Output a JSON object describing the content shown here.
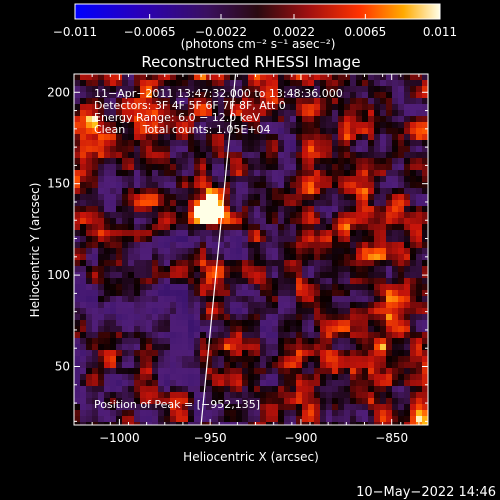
{
  "chart_data": {
    "type": "heatmap",
    "title": "Reconstructed RHESSI Image",
    "xlabel": "Heliocentric X (arcsec)",
    "ylabel": "Heliocentric Y (arcsec)",
    "xlim": [
      -1025,
      -830
    ],
    "ylim": [
      18,
      210
    ],
    "x_ticks": [
      -1000,
      -950,
      -900,
      -850
    ],
    "y_ticks": [
      50,
      100,
      150,
      200
    ],
    "x_tick_labels": [
      "−1000",
      "−950",
      "−900",
      "−850"
    ],
    "y_tick_labels": [
      "50",
      "100",
      "150",
      "200"
    ],
    "colorbar": {
      "range": [
        -0.011,
        0.011
      ],
      "ticks": [
        -0.011,
        -0.0065,
        -0.0022,
        0.0022,
        0.0065,
        0.011
      ],
      "tick_labels": [
        "−0.011",
        "−0.0065",
        "−0.0022",
        "0.0022",
        "0.0065",
        "0.011"
      ],
      "units": "(photons cm⁻² s⁻¹ asec⁻²)"
    },
    "peak": {
      "x": -952,
      "y": 135
    },
    "limb_line": {
      "x1": -955,
      "y1": 18,
      "x2": -936,
      "y2": 210
    },
    "annotations": [
      "11−Apr−2011 13:47:32.000 to 13:48:36.000",
      "Detectors: 3F 4F 5F 6F 7F 8F, Att 0",
      "Energy Range: 6.0 − 12.0 keV",
      "Clean     Total counts: 1.05E+04"
    ],
    "peak_label": "Position of Peak = [−952,135]",
    "colors": {
      "background": "#000000",
      "axes": "#ffffff",
      "text": "#ffffff"
    }
  },
  "footer": {
    "timestamp": "10−May−2022 14:46"
  }
}
